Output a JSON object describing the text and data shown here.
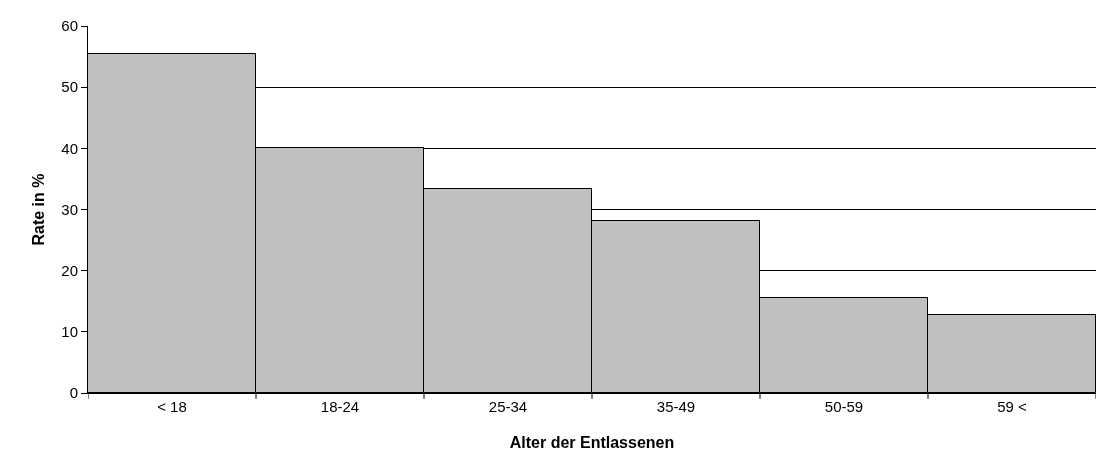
{
  "chart_data": {
    "type": "bar",
    "xlabel": "Alter der Entlassenen",
    "ylabel": "Rate in %",
    "categories": [
      "< 18",
      "18-24",
      "25-34",
      "35-49",
      "50-59",
      "59 <"
    ],
    "values": [
      55.5,
      40,
      33.4,
      28.1,
      15.5,
      12.8
    ],
    "color": "#c0c0c0",
    "ylim": [
      0,
      60
    ],
    "yticks": [
      0,
      10,
      20,
      30,
      40,
      50,
      60
    ],
    "grid": "y"
  }
}
